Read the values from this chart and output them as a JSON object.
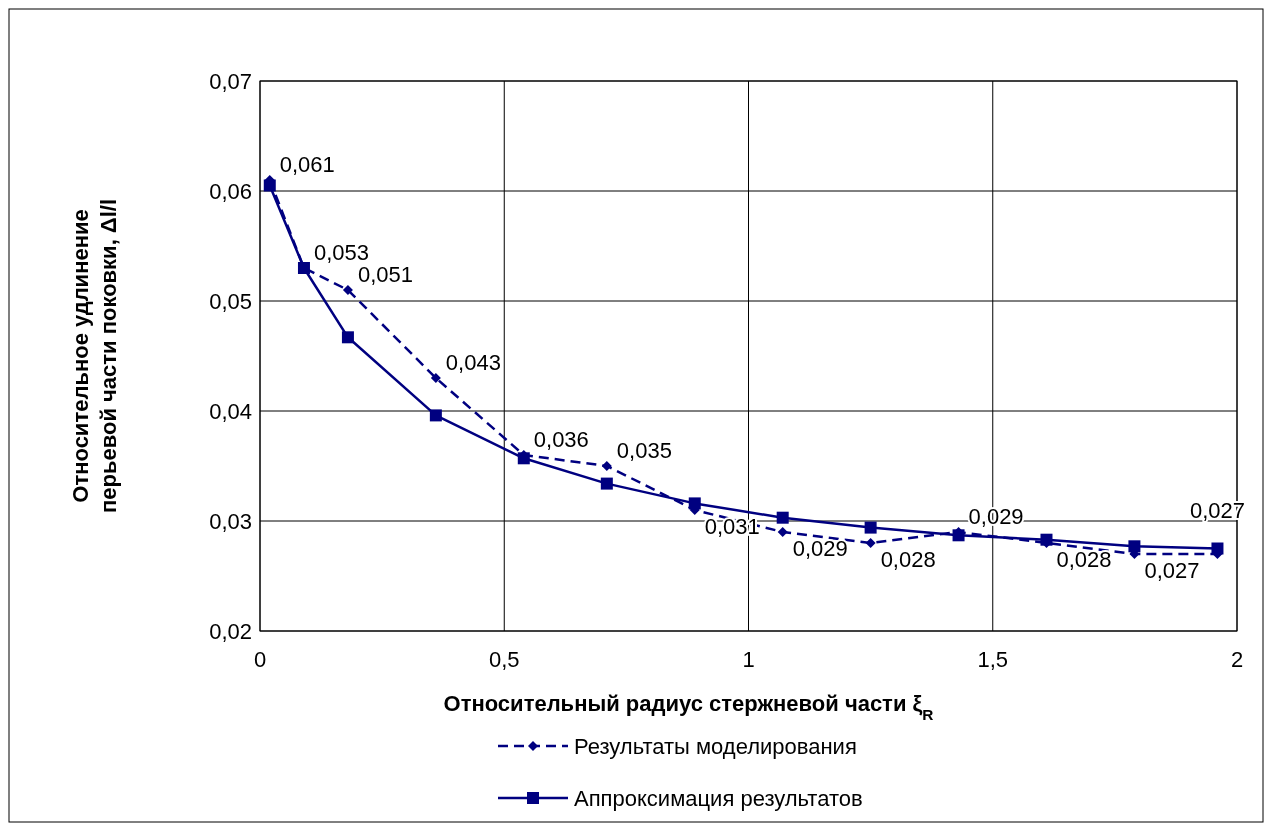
{
  "chart_data": {
    "type": "line",
    "xlabel": "Относительный радиус стержневой части ξ$_{R}$",
    "ylabel": "Относительное удлинение перьевой части поковки, Δl/l",
    "xlim": [
      0,
      2
    ],
    "xticks": [
      0,
      {
        "value": 0.5,
        "label": "0,5"
      },
      1,
      {
        "value": 1.5,
        "label": "1,5"
      },
      2
    ],
    "ylim": [
      0.02,
      0.07
    ],
    "yticks": [
      {
        "value": 0.02,
        "label": "0,02"
      },
      {
        "value": 0.03,
        "label": "0,03"
      },
      {
        "value": 0.04,
        "label": "0,04"
      },
      {
        "value": 0.05,
        "label": "0,05"
      },
      {
        "value": 0.06,
        "label": "0,06"
      },
      {
        "value": 0.07,
        "label": "0,07"
      }
    ],
    "grid": true,
    "legend": "bottom",
    "series": [
      {
        "name": "Результаты моделирования",
        "color": "#000080",
        "marker": "diamond",
        "line_style": "dashed",
        "x": [
          0.02,
          0.09,
          0.18,
          0.36,
          0.54,
          0.71,
          0.89,
          1.07,
          1.25,
          1.43,
          1.61,
          1.79,
          1.96
        ],
        "values": [
          0.061,
          0.053,
          0.051,
          0.043,
          0.036,
          0.035,
          0.031,
          0.029,
          0.028,
          0.029,
          0.028,
          0.027,
          0.027
        ],
        "value_labels": [
          "0,061",
          "0,053",
          "0,051",
          "0,043",
          "0,036",
          "0,035",
          "0,031",
          "0,029",
          "0,028",
          "0,029",
          "0,028",
          "0,027",
          "0,027"
        ]
      },
      {
        "name": "Аппроксимация результатов",
        "color": "#000080",
        "marker": "square",
        "line_style": "solid",
        "x": [
          0.02,
          0.09,
          0.18,
          0.36,
          0.54,
          0.71,
          0.89,
          1.07,
          1.25,
          1.43,
          1.61,
          1.79,
          1.96
        ],
        "values": [
          0.0605,
          0.053,
          0.0467,
          0.0396,
          0.0357,
          0.0334,
          0.0316,
          0.0303,
          0.0294,
          0.0287,
          0.0283,
          0.0277,
          0.0275
        ]
      }
    ]
  }
}
